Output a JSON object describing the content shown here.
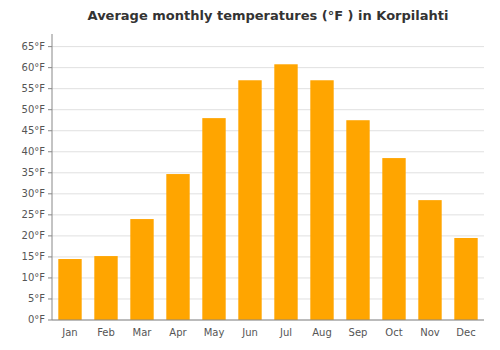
{
  "chart_data": {
    "type": "bar",
    "title": "Average monthly temperatures (°F ) in Korpilahti",
    "categories": [
      "Jan",
      "Feb",
      "Mar",
      "Apr",
      "May",
      "Jun",
      "Jul",
      "Aug",
      "Sep",
      "Oct",
      "Nov",
      "Dec"
    ],
    "values": [
      14.5,
      15.2,
      24.0,
      34.7,
      48.0,
      57.0,
      60.8,
      57.0,
      47.5,
      38.5,
      28.5,
      19.5
    ],
    "color": "#FFA500",
    "ylim": [
      0,
      68
    ],
    "yticks": [
      {
        "value": 0,
        "label": "0°F"
      },
      {
        "value": 5,
        "label": "5°F"
      },
      {
        "value": 10,
        "label": "10°F"
      },
      {
        "value": 15,
        "label": "15°F"
      },
      {
        "value": 20,
        "label": "20°F"
      },
      {
        "value": 25,
        "label": "25°F"
      },
      {
        "value": 30,
        "label": "30°F"
      },
      {
        "value": 35,
        "label": "35°F"
      },
      {
        "value": 40,
        "label": "40°F"
      },
      {
        "value": 45,
        "label": "45°F"
      },
      {
        "value": 50,
        "label": "50°F"
      },
      {
        "value": 55,
        "label": "55°F"
      },
      {
        "value": 60,
        "label": "60°F"
      },
      {
        "value": 65,
        "label": "65°F"
      }
    ],
    "grid": true
  }
}
